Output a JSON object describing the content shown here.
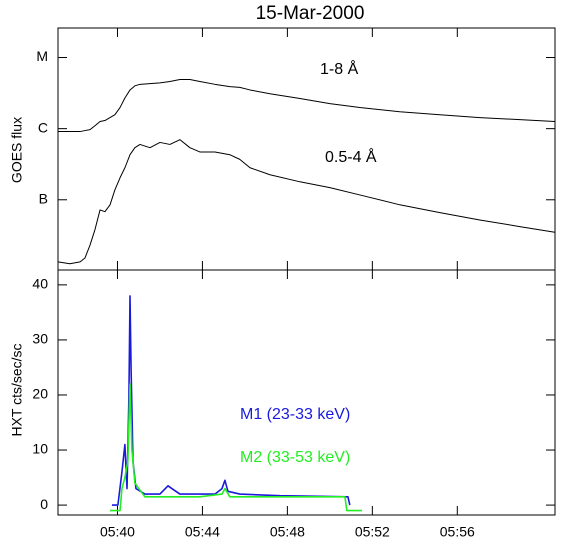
{
  "chart_data": [
    {
      "type": "line",
      "title": "15-Mar-2000",
      "ylabel": "GOES flux",
      "log_scale": true,
      "xlim": [
        37.2,
        60.6
      ],
      "ylim": [
        1.03e-08,
        2.6e-05
      ],
      "yticks": [
        {
          "value": 1e-05,
          "label": "M"
        },
        {
          "value": 1e-06,
          "label": "C"
        },
        {
          "value": 1e-07,
          "label": "B"
        }
      ],
      "series": [
        {
          "name": "1-8 Å",
          "color": "#000000",
          "x": [
            37.2,
            37.76,
            38.24,
            38.47,
            38.71,
            38.94,
            39.18,
            39.41,
            39.65,
            39.88,
            40.12,
            40.35,
            40.59,
            40.82,
            41.06,
            41.53,
            42.0,
            42.47,
            42.94,
            43.41,
            43.88,
            44.59,
            45.29,
            45.76,
            46.24,
            47.18,
            48.59,
            50.0,
            51.41,
            53.29,
            55.18,
            57.06,
            58.94,
            60.59
          ],
          "values": [
            9.1e-07,
            9.1e-07,
            9.1e-07,
            9.4e-07,
            9.7e-07,
            1.1e-06,
            1.26e-06,
            1.3e-06,
            1.43e-06,
            1.57e-06,
            1.98e-06,
            2.7e-06,
            3.5e-06,
            4e-06,
            4.2e-06,
            4.3e-06,
            4.4e-06,
            4.6e-06,
            4.9e-06,
            4.9e-06,
            4.6e-06,
            4.2e-06,
            3.9e-06,
            3.8e-06,
            3.5e-06,
            3.1e-06,
            2.65e-06,
            2.25e-06,
            1.98e-06,
            1.73e-06,
            1.57e-06,
            1.43e-06,
            1.34e-06,
            1.26e-06
          ]
        },
        {
          "name": "0.5-4 Å",
          "color": "#000000",
          "x": [
            37.2,
            37.76,
            38.24,
            38.47,
            38.71,
            38.94,
            39.18,
            39.41,
            39.65,
            39.88,
            40.12,
            40.35,
            40.59,
            40.82,
            41.06,
            41.53,
            42.0,
            42.47,
            42.94,
            43.41,
            43.88,
            44.59,
            45.29,
            45.76,
            46.24,
            47.18,
            48.59,
            50.0,
            51.41,
            53.29,
            55.18,
            57.06,
            58.94,
            60.59
          ],
          "values": [
            1.34e-08,
            1.26e-08,
            1.34e-08,
            1.52e-08,
            2.32e-08,
            3.8e-08,
            7.2e-08,
            6.8e-08,
            8.5e-08,
            1.38e-07,
            2.04e-07,
            2.82e-07,
            4.3e-07,
            5.4e-07,
            6e-07,
            5.4e-07,
            6.4e-07,
            6e-07,
            7e-07,
            5.4e-07,
            4.7e-07,
            4.7e-07,
            4.3e-07,
            3.7e-07,
            2.82e-07,
            2.25e-07,
            1.79e-07,
            1.48e-07,
            1.17e-07,
            8.5e-08,
            6.6e-08,
            5.2e-08,
            4.2e-08,
            3.5e-08
          ]
        }
      ]
    },
    {
      "type": "line",
      "ylabel": "HXT  cts/sec/sc",
      "xlim": [
        37.2,
        60.6
      ],
      "ylim": [
        -1.8,
        42.7
      ],
      "xticks": [
        {
          "value": 40,
          "label": "05:40"
        },
        {
          "value": 44,
          "label": "05:44"
        },
        {
          "value": 48,
          "label": "05:48"
        },
        {
          "value": 52,
          "label": "05:52"
        },
        {
          "value": 56,
          "label": "05:56"
        }
      ],
      "yticks": [
        0,
        10,
        20,
        30,
        40
      ],
      "series": [
        {
          "name": "M1 (23-33 keV)",
          "color": "#1a1adc",
          "x": [
            39.74,
            40.02,
            40.21,
            40.35,
            40.45,
            40.54,
            40.59,
            40.64,
            40.73,
            40.87,
            41.29,
            42.0,
            42.38,
            42.56,
            42.94,
            43.88,
            44.59,
            44.92,
            45.06,
            45.2,
            45.76,
            47.65,
            49.53,
            50.85,
            50.94
          ],
          "values": [
            0,
            0,
            6,
            11,
            3,
            20,
            38,
            25,
            8,
            3,
            2,
            2,
            3.5,
            3,
            2,
            2,
            2,
            3,
            4.5,
            2.5,
            2,
            1.7,
            1.6,
            1.5,
            0
          ]
        },
        {
          "name": "M2 (33-53 keV)",
          "color": "#22ee22",
          "x": [
            39.65,
            40.12,
            40.21,
            40.35,
            40.49,
            40.59,
            40.68,
            40.82,
            41.29,
            43.88,
            44.92,
            45.06,
            45.29,
            48.59,
            50.71,
            50.8,
            51.51
          ],
          "values": [
            -1,
            -1,
            3,
            5,
            8,
            22,
            10,
            4,
            1.5,
            1.5,
            2,
            3,
            1.5,
            1.5,
            1.5,
            -1,
            -1
          ]
        }
      ]
    }
  ]
}
